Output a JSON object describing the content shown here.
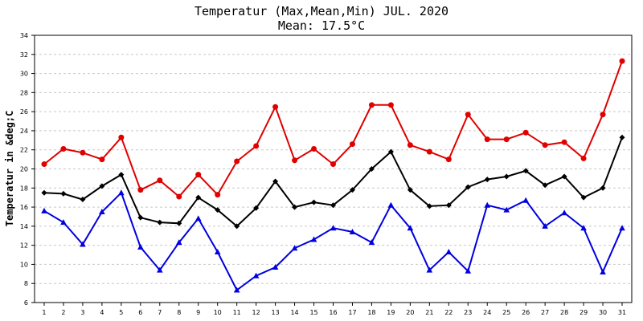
{
  "chart_data": {
    "type": "line",
    "title": "Temperatur (Max,Mean,Min) JUL. 2020",
    "subtitle": "Mean: 17.5°C",
    "xlabel": "",
    "ylabel": "Temperatur in &deg;C",
    "ylim": [
      6,
      34
    ],
    "ytick_step": 2,
    "grid": true,
    "categories": [
      "1",
      "2",
      "3",
      "4",
      "5",
      "6",
      "7",
      "8",
      "9",
      "10",
      "11",
      "12",
      "13",
      "14",
      "15",
      "16",
      "17",
      "18",
      "19",
      "20",
      "21",
      "22",
      "23",
      "24",
      "25",
      "26",
      "27",
      "28",
      "29",
      "30",
      "31"
    ],
    "series": [
      {
        "name": "Max",
        "color": "#e00000",
        "marker": "circle",
        "values": [
          20.5,
          22.1,
          21.7,
          21.0,
          23.3,
          17.8,
          18.8,
          17.1,
          19.4,
          17.3,
          20.8,
          22.4,
          26.5,
          20.9,
          22.1,
          20.5,
          22.6,
          26.7,
          26.7,
          22.5,
          21.8,
          21.0,
          25.7,
          23.1,
          23.1,
          23.8,
          22.5,
          22.8,
          21.1,
          25.7,
          31.3
        ]
      },
      {
        "name": "Mean",
        "color": "#000000",
        "marker": "diamond",
        "values": [
          17.5,
          17.4,
          16.8,
          18.2,
          19.4,
          14.9,
          14.4,
          14.3,
          17.0,
          15.7,
          14.0,
          15.9,
          18.7,
          16.0,
          16.5,
          16.2,
          17.8,
          20.0,
          21.8,
          17.8,
          16.1,
          16.2,
          18.1,
          18.9,
          19.2,
          19.8,
          18.3,
          19.2,
          17.0,
          18.0,
          23.3
        ]
      },
      {
        "name": "Min",
        "color": "#0000e0",
        "marker": "triangle",
        "values": [
          15.6,
          14.4,
          12.1,
          15.5,
          17.5,
          11.8,
          9.4,
          12.3,
          14.8,
          11.3,
          7.3,
          8.8,
          9.7,
          11.7,
          12.6,
          13.8,
          13.4,
          12.3,
          16.2,
          13.8,
          9.4,
          11.3,
          9.3,
          16.2,
          15.7,
          16.7,
          14.0,
          15.4,
          13.8,
          9.2,
          13.8
        ]
      }
    ]
  }
}
